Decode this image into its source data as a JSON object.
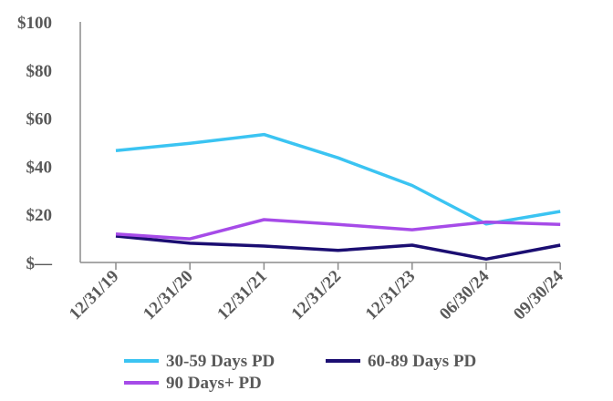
{
  "chart_data": {
    "type": "line",
    "title": "",
    "xlabel": "",
    "ylabel": "",
    "categories": [
      "12/31/19",
      "12/31/20",
      "12/31/21",
      "12/31/22",
      "12/31/23",
      "06/30/24",
      "09/30/24"
    ],
    "ylim": [
      0,
      100
    ],
    "yticks": [
      0,
      20,
      40,
      60,
      80,
      100
    ],
    "ytick_labels": [
      "$—",
      "$20",
      "$40",
      "$60",
      "$80",
      "$100"
    ],
    "grid": false,
    "legend_position": "bottom",
    "series": [
      {
        "name": "30-59 Days PD",
        "color": "#3BC4F2",
        "values": [
          46.5,
          49.5,
          53.2,
          43.5,
          32.0,
          16.0,
          21.2
        ]
      },
      {
        "name": "60-89 Days PD",
        "color": "#1B0E72",
        "values": [
          11.0,
          8.0,
          6.8,
          5.0,
          7.2,
          1.4,
          7.2
        ]
      },
      {
        "name": "90 Days+ PD",
        "color": "#A64BE8",
        "values": [
          11.8,
          9.8,
          17.8,
          15.8,
          13.6,
          16.8,
          15.8
        ]
      }
    ]
  }
}
